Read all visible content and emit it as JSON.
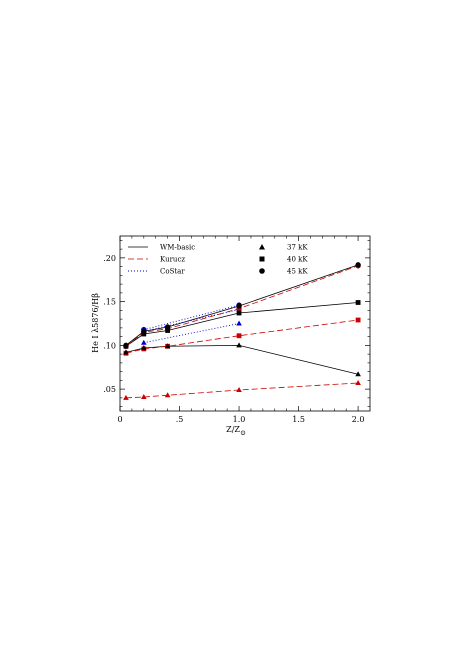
{
  "chart_data": {
    "type": "line",
    "xlabel": "Z/Z",
    "xlabel_sub": "⊙",
    "ylabel": "He I λ5876/Hβ",
    "xlim": [
      0,
      2.1
    ],
    "ylim": [
      0.025,
      0.225
    ],
    "xticks": [
      0,
      0.5,
      1.0,
      1.5,
      2.0
    ],
    "xtick_labels": [
      "0",
      ".5",
      "1.0",
      "1.5",
      "2.0"
    ],
    "yticks": [
      0.05,
      0.1,
      0.15,
      0.2
    ],
    "ytick_labels": [
      ".05",
      ".10",
      ".15",
      ".20"
    ],
    "legend_models": [
      {
        "name": "WM-basic",
        "color": "#000000",
        "dash": ""
      },
      {
        "name": "Kurucz",
        "color": "#cc0000",
        "dash": "6,3"
      },
      {
        "name": "CoStar",
        "color": "#0000cc",
        "dash": "1,2"
      }
    ],
    "legend_temps": [
      {
        "name": "37 kK",
        "marker": "triangle"
      },
      {
        "name": "40 kK",
        "marker": "square"
      },
      {
        "name": "45 kK",
        "marker": "circle"
      }
    ],
    "series": [
      {
        "model": "WM-basic",
        "temp": "37 kK",
        "x": [
          0.05,
          0.2,
          0.4,
          1.0,
          2.0
        ],
        "y": [
          0.092,
          0.097,
          0.099,
          0.1,
          0.067
        ]
      },
      {
        "model": "WM-basic",
        "temp": "40 kK",
        "x": [
          0.05,
          0.2,
          0.4,
          1.0,
          2.0
        ],
        "y": [
          0.099,
          0.113,
          0.117,
          0.137,
          0.149
        ]
      },
      {
        "model": "WM-basic",
        "temp": "45 kK",
        "x": [
          0.05,
          0.2,
          0.4,
          1.0,
          2.0
        ],
        "y": [
          0.1,
          0.116,
          0.121,
          0.145,
          0.192
        ]
      },
      {
        "model": "Kurucz",
        "temp": "37 kK",
        "x": [
          0.05,
          0.2,
          0.4,
          1.0,
          2.0
        ],
        "y": [
          0.04,
          0.041,
          0.043,
          0.049,
          0.057
        ]
      },
      {
        "model": "Kurucz",
        "temp": "40 kK",
        "x": [
          0.05,
          0.2,
          0.4,
          1.0,
          2.0
        ],
        "y": [
          0.091,
          0.096,
          0.099,
          0.111,
          0.129
        ]
      },
      {
        "model": "Kurucz",
        "temp": "45 kK",
        "x": [
          0.05,
          0.2,
          0.4,
          1.0,
          2.0
        ],
        "y": [
          0.099,
          0.115,
          0.119,
          0.142,
          0.191
        ]
      },
      {
        "model": "CoStar",
        "temp": "37 kK",
        "x": [
          0.2,
          1.0
        ],
        "y": [
          0.103,
          0.125
        ]
      },
      {
        "model": "CoStar",
        "temp": "40 kK",
        "x": [
          0.2,
          1.0
        ],
        "y": [
          0.116,
          0.141
        ]
      },
      {
        "model": "CoStar",
        "temp": "45 kK",
        "x": [
          0.2,
          1.0
        ],
        "y": [
          0.118,
          0.146
        ]
      }
    ]
  }
}
